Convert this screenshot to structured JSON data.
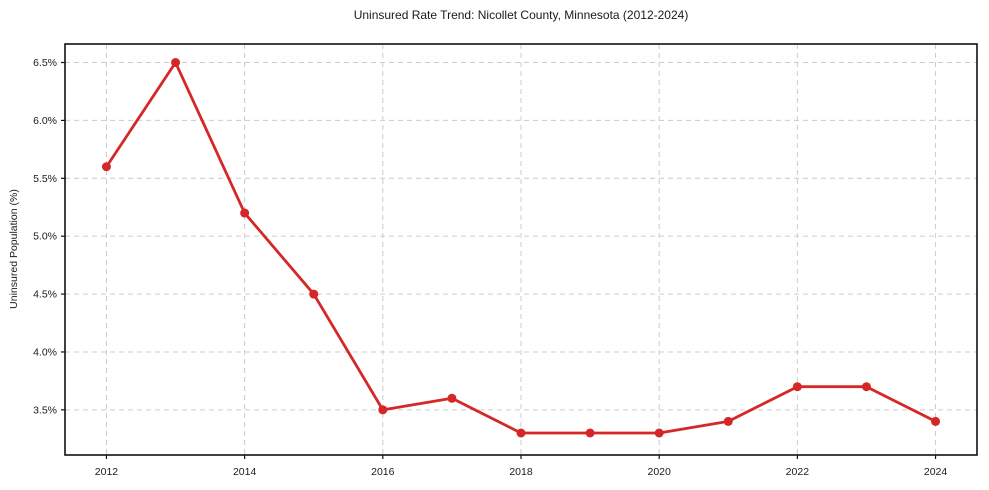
{
  "chart_data": {
    "type": "line",
    "title": "Uninsured Rate Trend: Nicollet County, Minnesota (2012-2024)",
    "xlabel": "",
    "ylabel": "Uninsured Population (%)",
    "x": [
      2012,
      2013,
      2014,
      2015,
      2016,
      2017,
      2018,
      2019,
      2020,
      2021,
      2022,
      2023,
      2024
    ],
    "values": [
      5.6,
      6.5,
      5.2,
      4.5,
      3.5,
      3.6,
      3.3,
      3.3,
      3.3,
      3.4,
      3.7,
      3.7,
      3.4
    ],
    "series_name": "Uninsured population percent",
    "xtick_values": [
      2012,
      2014,
      2016,
      2018,
      2020,
      2022,
      2024
    ],
    "xtick_labels": [
      "2012",
      "2014",
      "2016",
      "2018",
      "2020",
      "2022",
      "2024"
    ],
    "ytick_values": [
      3.5,
      4.0,
      4.5,
      5.0,
      5.5,
      6.0,
      6.5
    ],
    "ytick_labels": [
      "3.5%",
      "4.0%",
      "4.5%",
      "5.0%",
      "5.5%",
      "6.0%",
      "6.5%"
    ],
    "xlim": [
      2011.4,
      2024.6
    ],
    "ylim": [
      3.11,
      6.66
    ],
    "grid": true,
    "legend": "none",
    "line_color": "#d62728",
    "grid_color": "#cccccc",
    "spine_color": "#111111",
    "marker": "circle"
  }
}
